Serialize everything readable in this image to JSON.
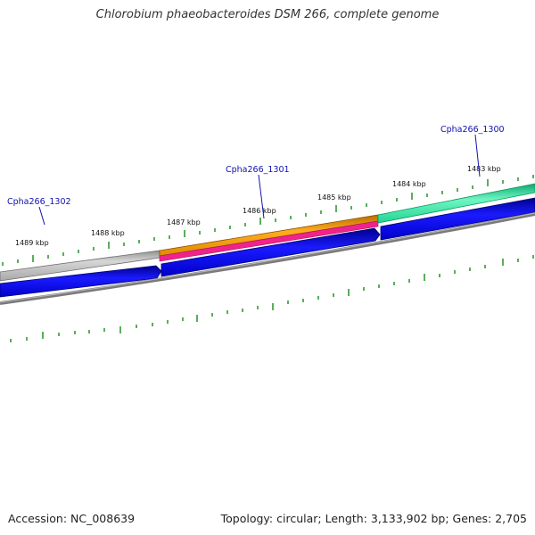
{
  "title": "Chlorobium phaeobacteroides DSM 266, complete genome",
  "footer": {
    "accession": "Accession: NC_008639",
    "summary": "Topology: circular; Length: 3,133,902 bp; Genes: 2,705"
  },
  "scale_labels": [
    "1489 kbp",
    "1488 kbp",
    "1487 kbp",
    "1486 kbp",
    "1485 kbp",
    "1484 kbp",
    "1483 kbp"
  ],
  "gene_labels": [
    "Cpha266_1302",
    "Cpha266_1301",
    "Cpha266_1300"
  ],
  "colors": {
    "forward_cds_gray": "#b9b9b9",
    "forward_cds_orange": "#f59a00",
    "forward_cds_green": "#27e39a",
    "rna_pink": "#f0238c",
    "cds_blue": "#0000e6",
    "backbone": "#808080",
    "ticks": "#178a17",
    "gene_label": "#1010b0"
  }
}
